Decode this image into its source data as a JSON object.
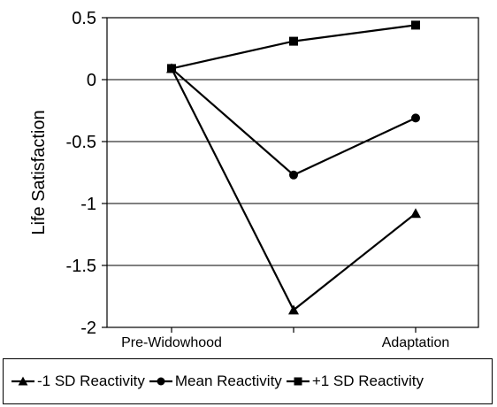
{
  "chart_data": {
    "type": "line",
    "ylabel": "Life Satisfaction",
    "categories": [
      "Pre-Widowhood",
      "",
      "Adaptation"
    ],
    "ylim": [
      -2,
      0.5
    ],
    "yticks": [
      0.5,
      0,
      -0.5,
      -1,
      -1.5,
      -2
    ],
    "ytick_labels": [
      "0.5",
      "0",
      "-0.5",
      "-1",
      "-1.5",
      "-2"
    ],
    "grid": "horizontal",
    "legend_position": "bottom",
    "series": [
      {
        "name": "-1 SD Reactivity",
        "marker": "triangle",
        "values": [
          0.09,
          -1.86,
          -1.08
        ]
      },
      {
        "name": "Mean Reactivity",
        "marker": "circle",
        "values": [
          0.09,
          -0.77,
          -0.31
        ]
      },
      {
        "name": "+1 SD Reactivity",
        "marker": "square",
        "values": [
          0.09,
          0.31,
          0.44
        ]
      }
    ]
  }
}
